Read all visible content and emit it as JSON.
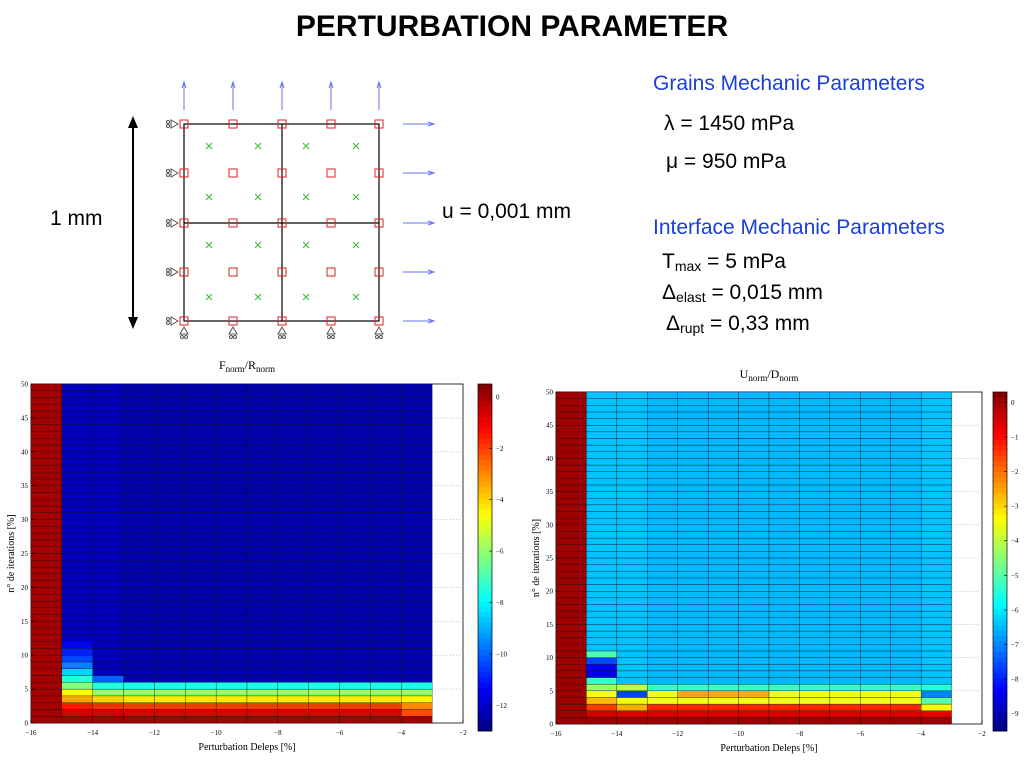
{
  "page": {
    "title": "PERTURBATION PARAMETER"
  },
  "mesh": {
    "height_label": "1 mm",
    "displacement_label": "u = 0,001 mm"
  },
  "grains": {
    "heading": "Grains Mechanic Parameters",
    "lambda": "λ = 1450 mPa",
    "mu": "μ = 950 mPa"
  },
  "interface": {
    "heading": "Interface Mechanic Parameters",
    "tmax_sym": "T",
    "tmax_sub": "max",
    "tmax_val": " = 5 mPa",
    "delast_sym": "Δ",
    "delast_sub": "elast",
    "delast_val": " = 0,015 mm",
    "drupt_sym": "Δ",
    "drupt_sub": "rupt",
    "drupt_val": " = 0,33 mm"
  },
  "colors": {
    "title": "#000000",
    "heading": "#1a3fd6",
    "node": "#dd2222",
    "cross": "#33bb33",
    "arrow": "#6677ee"
  },
  "chart_data": [
    {
      "type": "heatmap",
      "title_main": "F",
      "title_sub1": "norm",
      "title_mid": "/R",
      "title_sub2": "norm",
      "xlabel": "Perturbation Deleps   [%]",
      "ylabel": "n° de iterations   [%]",
      "xlim": [
        -16,
        -2
      ],
      "ylim": [
        0,
        50
      ],
      "xticks": [
        -16,
        -14,
        -12,
        -10,
        -8,
        -6,
        -4,
        -2
      ],
      "yticks": [
        0,
        5,
        10,
        15,
        20,
        25,
        30,
        35,
        40,
        45,
        50
      ],
      "x_edges": [
        -16,
        -15,
        -14,
        -13,
        -12,
        -11,
        -10,
        -9,
        -8,
        -7,
        -6,
        -5,
        -4,
        -3
      ],
      "iterations": 50,
      "clim": [
        -13,
        0.5
      ],
      "colorbar_ticks": [
        0,
        -2,
        -4,
        -6,
        -8,
        -10,
        -12
      ],
      "columns": [
        {
          "profile": [],
          "floor": 0
        },
        {
          "profile": [
            0,
            -0.6,
            -1.5,
            -3.4,
            -4.6,
            -6.2,
            -7.4,
            -8.5,
            -9.6,
            -10.4,
            -10.9,
            -11.3
          ],
          "floor": -12.2
        },
        {
          "profile": [
            0,
            -0.6,
            -1.8,
            -4.0,
            -6.0,
            -7.5,
            -10.0
          ],
          "floor": -12.2
        },
        {
          "profile": [
            0,
            -0.7,
            -2.0,
            -4.3,
            -6.0,
            -7.6
          ],
          "floor": -12.4
        },
        {
          "profile": [
            0,
            -0.7,
            -2.0,
            -4.3,
            -6.0,
            -7.6
          ],
          "floor": -12.4
        },
        {
          "profile": [
            0,
            -0.7,
            -2.0,
            -4.3,
            -6.0,
            -7.6
          ],
          "floor": -12.4
        },
        {
          "profile": [
            0,
            -0.7,
            -2.0,
            -4.3,
            -6.0,
            -7.6
          ],
          "floor": -12.4
        },
        {
          "profile": [
            0,
            -0.7,
            -2.0,
            -4.3,
            -6.0,
            -7.6
          ],
          "floor": -12.4
        },
        {
          "profile": [
            0,
            -0.7,
            -2.0,
            -4.3,
            -6.0,
            -7.6
          ],
          "floor": -12.4
        },
        {
          "profile": [
            0,
            -0.7,
            -2.0,
            -4.3,
            -6.0,
            -7.6
          ],
          "floor": -12.4
        },
        {
          "profile": [
            0,
            -0.7,
            -2.0,
            -4.3,
            -6.0,
            -7.6
          ],
          "floor": -12.4
        },
        {
          "profile": [
            0,
            -0.7,
            -2.0,
            -4.3,
            -6.0,
            -7.6
          ],
          "floor": -12.4
        },
        {
          "profile": [
            0,
            -2.2,
            -3.0,
            -4.4,
            -6.0,
            -7.6
          ],
          "floor": -12.4
        }
      ]
    },
    {
      "type": "heatmap",
      "title_main": "U",
      "title_sub1": "norm",
      "title_mid": "/D",
      "title_sub2": "norm",
      "xlabel": "Perturbation Deleps   [%]",
      "ylabel": "n° de iterations   [%]",
      "xlim": [
        -16,
        -2
      ],
      "ylim": [
        0,
        50
      ],
      "xticks": [
        -16,
        -14,
        -12,
        -10,
        -8,
        -6,
        -4,
        -2
      ],
      "yticks": [
        0,
        5,
        10,
        15,
        20,
        25,
        30,
        35,
        40,
        45,
        50
      ],
      "x_edges": [
        -16,
        -15,
        -14,
        -13,
        -12,
        -11,
        -10,
        -9,
        -8,
        -7,
        -6,
        -5,
        -4,
        -3
      ],
      "iterations": 50,
      "clim": [
        -9.5,
        0.3
      ],
      "colorbar_ticks": [
        0,
        -1,
        -2,
        -3,
        -4,
        -5,
        -6,
        -7,
        -8,
        -9
      ],
      "columns": [
        {
          "profile": [],
          "floor": 0
        },
        {
          "profile": [
            0,
            -0.5,
            -1.5,
            -2.7,
            -3.5,
            -4.3,
            -5.3,
            -8.5,
            -8.3,
            -7.6,
            -5.1
          ],
          "floor": -6.4
        },
        {
          "profile": [
            0,
            -0.6,
            -2.6,
            -3.5,
            -7.6,
            -4.0
          ],
          "floor": -6.4
        },
        {
          "profile": [
            0,
            -0.6,
            -1.3,
            -3.5,
            -3.5,
            -5.3
          ],
          "floor": -6.5
        },
        {
          "profile": [
            0,
            -0.6,
            -1.3,
            -3.5,
            -2.5,
            -5.3
          ],
          "floor": -6.5
        },
        {
          "profile": [
            0,
            -0.6,
            -1.3,
            -3.5,
            -2.6,
            -5.3
          ],
          "floor": -6.5
        },
        {
          "profile": [
            0,
            -0.6,
            -1.3,
            -3.5,
            -2.6,
            -5.3
          ],
          "floor": -6.5
        },
        {
          "profile": [
            0,
            -0.6,
            -1.3,
            -3.5,
            -3.5,
            -5.3
          ],
          "floor": -6.5
        },
        {
          "profile": [
            0,
            -0.6,
            -1.3,
            -3.5,
            -3.5,
            -5.3
          ],
          "floor": -6.5
        },
        {
          "profile": [
            0,
            -0.6,
            -1.3,
            -3.5,
            -3.5,
            -5.3
          ],
          "floor": -6.5
        },
        {
          "profile": [
            0,
            -0.6,
            -1.3,
            -3.5,
            -3.5,
            -5.3
          ],
          "floor": -6.5
        },
        {
          "profile": [
            0,
            -0.6,
            -1.3,
            -3.5,
            -3.5,
            -5.3
          ],
          "floor": -6.5
        },
        {
          "profile": [
            0,
            -0.7,
            -3.4,
            -5.0,
            -7.0,
            -5.5
          ],
          "floor": -6.4
        }
      ]
    }
  ]
}
